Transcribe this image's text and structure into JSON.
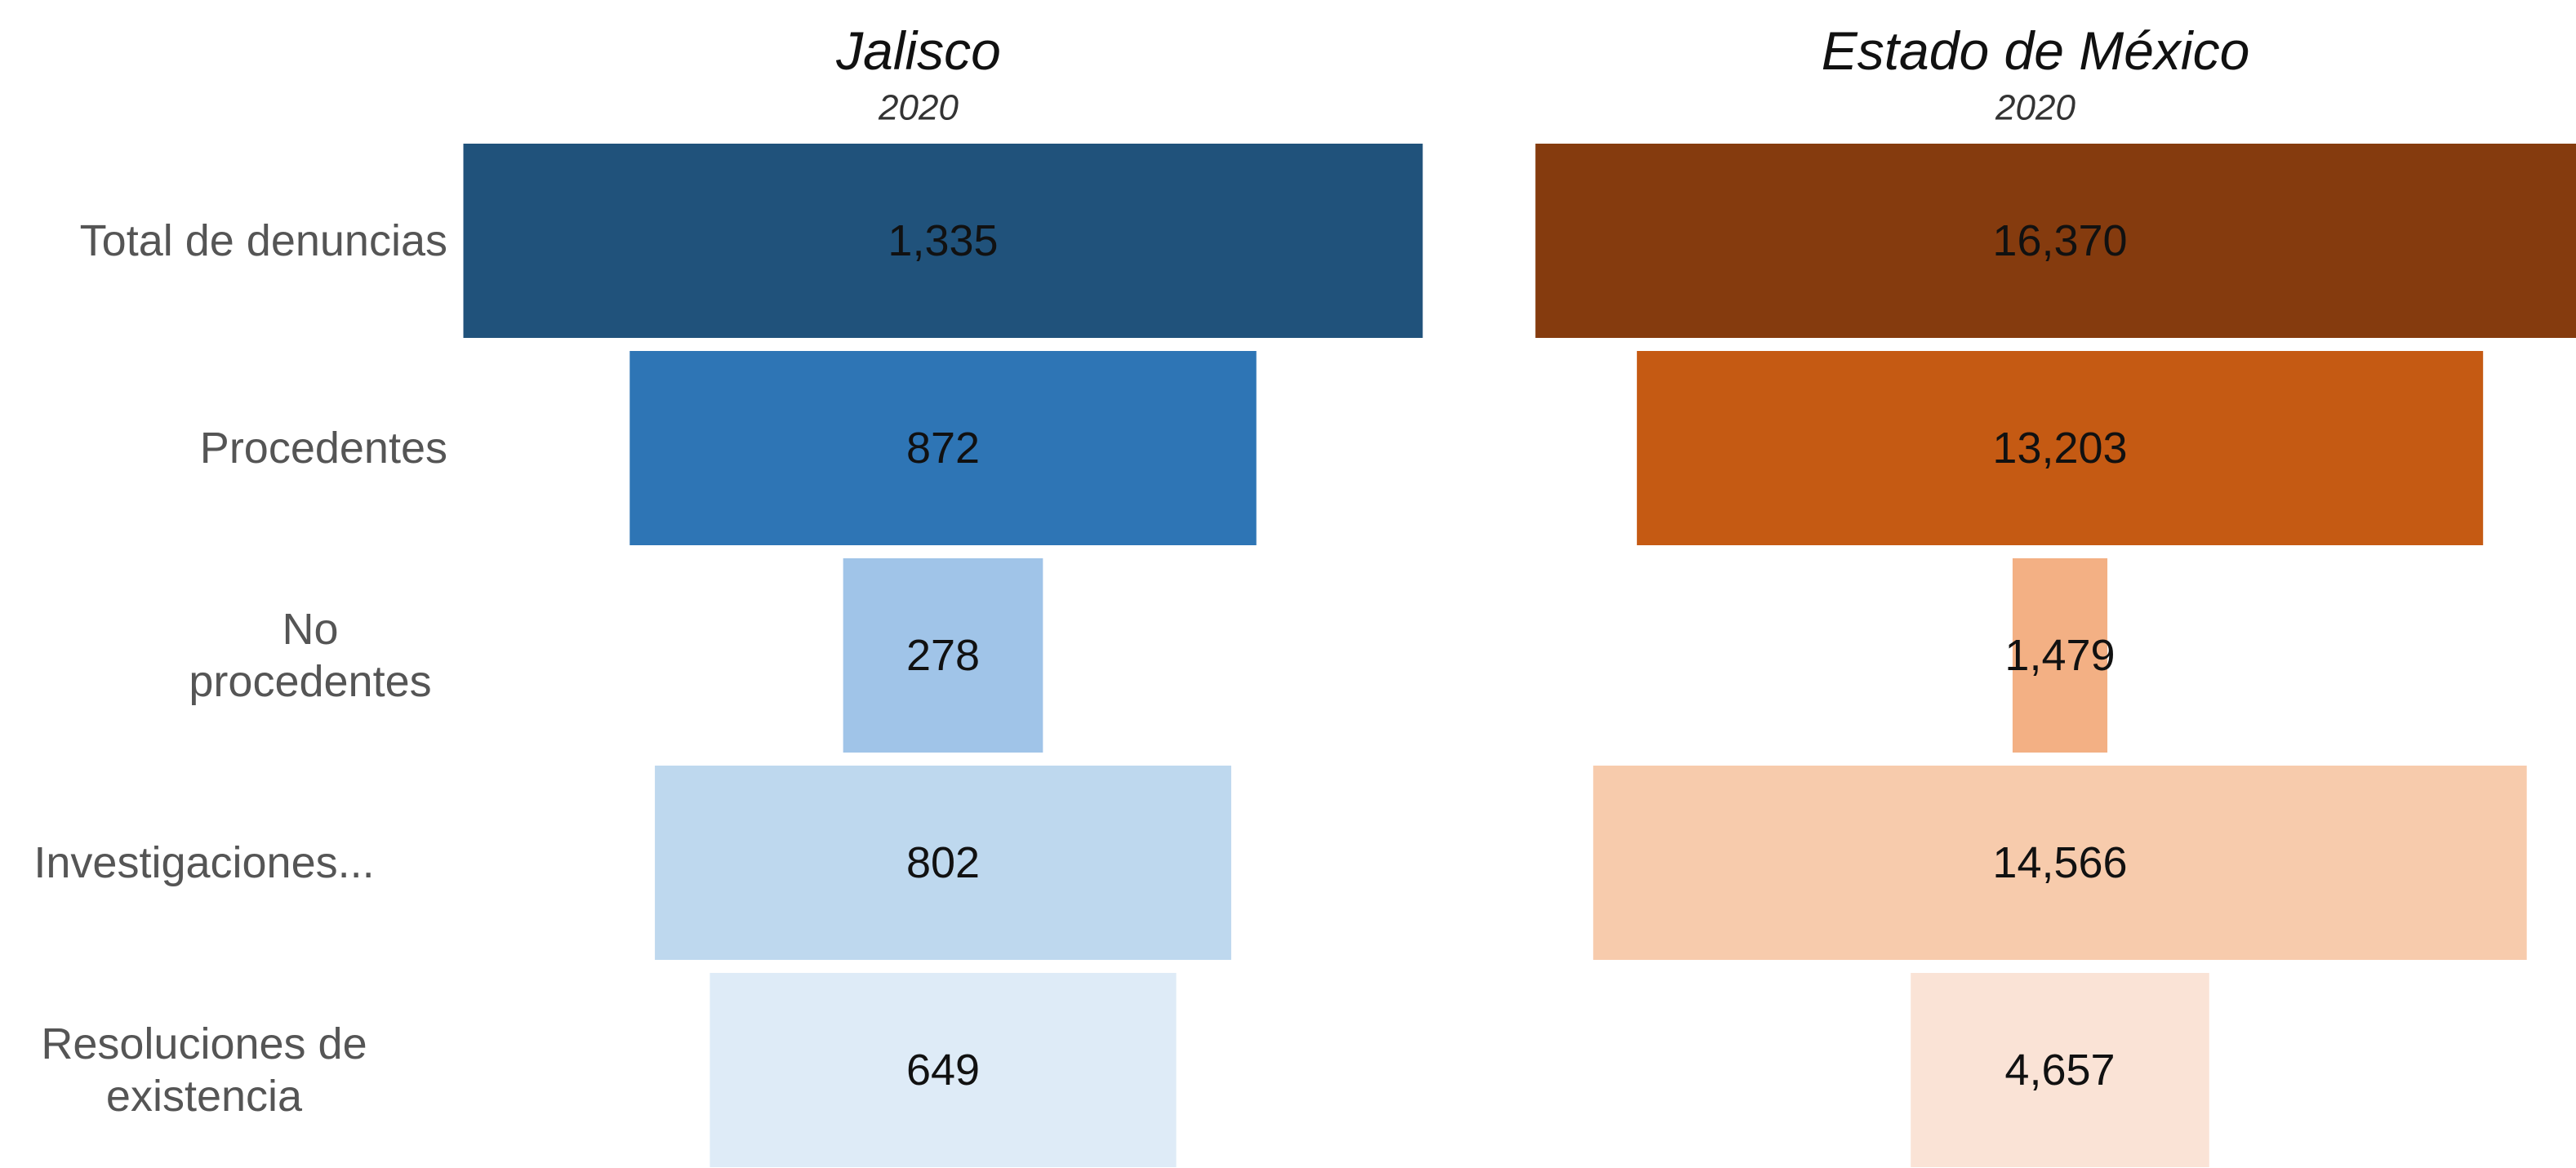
{
  "chart_data": {
    "type": "bar",
    "stages": [
      [
        "Total de denuncias"
      ],
      [
        "Procedentes"
      ],
      [
        "No",
        "procedentes"
      ],
      [
        "Investigaciones..."
      ],
      [
        "Resoluciones de",
        "existencia"
      ]
    ],
    "panels": [
      {
        "title": "Jalisco",
        "subtitle": "2020",
        "values": [
          1335,
          872,
          278,
          802,
          649
        ],
        "labels": [
          "1,335",
          "872",
          "278",
          "802",
          "649"
        ],
        "colors": [
          "#20527b",
          "#2e75b5",
          "#a0c4e8",
          "#bed8ee",
          "#deebf7"
        ]
      },
      {
        "title": "Estado de México",
        "subtitle": "2020",
        "values": [
          16370,
          13203,
          1479,
          14566,
          4657
        ],
        "labels": [
          "16,370",
          "13,203",
          "1,479",
          "14,566",
          "4,657"
        ],
        "colors": [
          "#853b0e",
          "#c55a13",
          "#f3b084",
          "#f7cbac",
          "#fae3d6"
        ]
      }
    ]
  }
}
